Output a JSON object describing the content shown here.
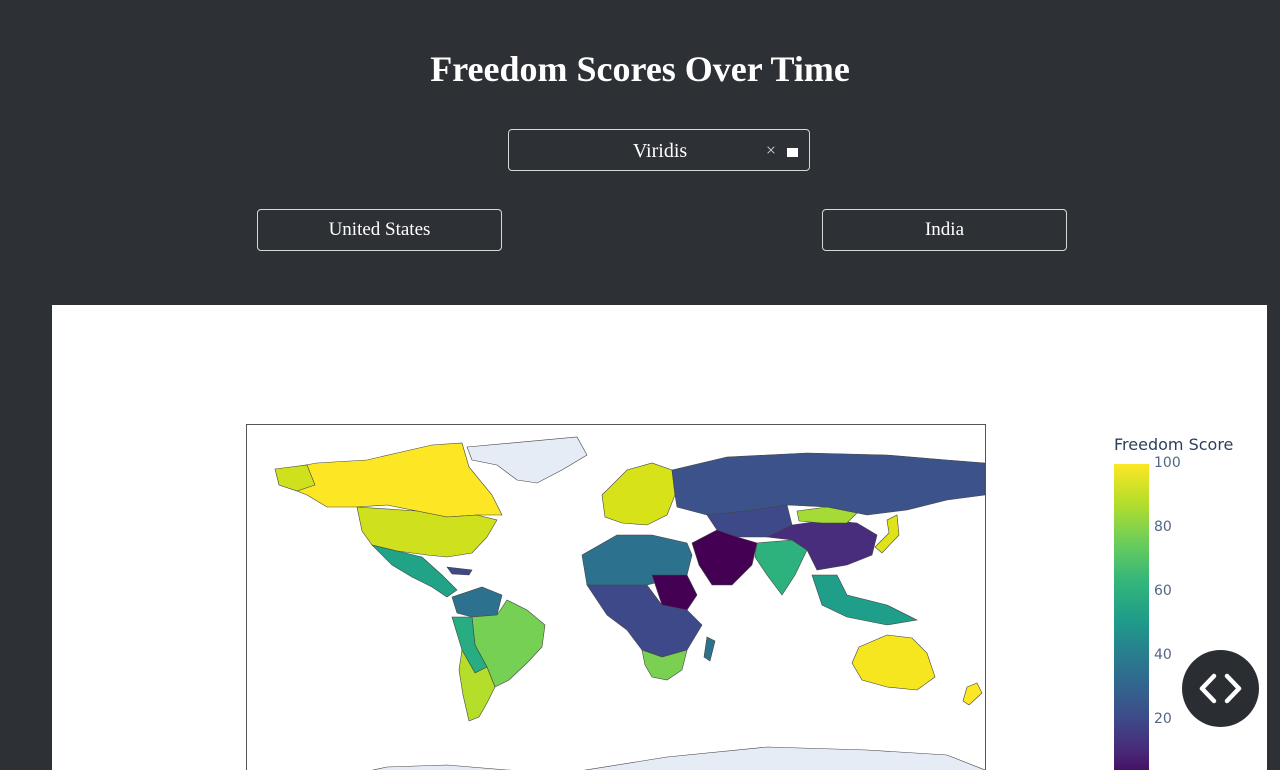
{
  "page": {
    "title": "Freedom Scores Over Time"
  },
  "colorscale_dropdown": {
    "value": "Viridis",
    "clear_symbol": "×"
  },
  "country_buttons": [
    {
      "label": "United States"
    },
    {
      "label": "India"
    }
  ],
  "chart_data": {
    "type": "choropleth",
    "colorbar_title": "Freedom Score",
    "colorscale": "Viridis",
    "ticks": [
      "100",
      "80",
      "60",
      "40",
      "20"
    ],
    "range": [
      0,
      100
    ],
    "regions": [
      {
        "name": "Canada",
        "value": 98,
        "color": "#fde725"
      },
      {
        "name": "United States",
        "value": 83,
        "color": "#cfe11c"
      },
      {
        "name": "Mexico",
        "value": 60,
        "color": "#20a386"
      },
      {
        "name": "Brazil",
        "value": 73,
        "color": "#75d054"
      },
      {
        "name": "Argentina",
        "value": 84,
        "color": "#b5de2b"
      },
      {
        "name": "Chile",
        "value": 93,
        "color": "#dfe318"
      },
      {
        "name": "Russia",
        "value": 16,
        "color": "#3b528b"
      },
      {
        "name": "China",
        "value": 9,
        "color": "#472d7b"
      },
      {
        "name": "Mongolia",
        "value": 84,
        "color": "#a5db36"
      },
      {
        "name": "India",
        "value": 66,
        "color": "#2db27d"
      },
      {
        "name": "Australia",
        "value": 97,
        "color": "#f6e620"
      },
      {
        "name": "Europe",
        "value": 92,
        "color": "#d8e219"
      },
      {
        "name": "Saudi Arabia",
        "value": 7,
        "color": "#440154"
      },
      {
        "name": "Sudan",
        "value": 2,
        "color": "#440154"
      },
      {
        "name": "South Africa",
        "value": 79,
        "color": "#7ad151"
      }
    ]
  },
  "colors": {
    "background": "#2d3136",
    "plot_bg": "#ffffff",
    "accent": "#ffffff"
  },
  "icons": {
    "code_toggle": "code-brackets-icon"
  }
}
